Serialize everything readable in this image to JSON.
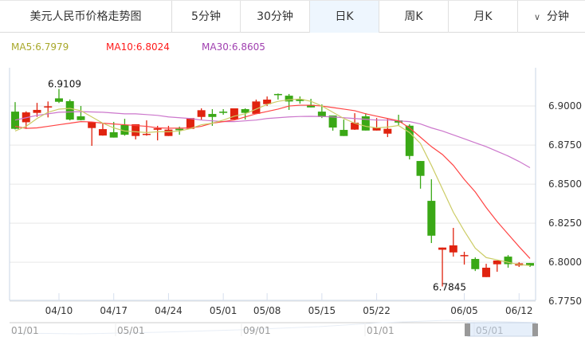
{
  "header": {
    "title": "美元人民币价格走势图",
    "tabs": [
      {
        "label": "5分钟"
      },
      {
        "label": "30分钟"
      },
      {
        "label": "日K",
        "active": true
      },
      {
        "label": "周K"
      },
      {
        "label": "月K"
      },
      {
        "label": "分钟",
        "icon": "chevron-down-icon"
      }
    ]
  },
  "ma_legend": [
    {
      "label": "MA5:6.7979",
      "color": "#a8a82a"
    },
    {
      "label": "MA10:6.8024",
      "color": "#ff1a1a"
    },
    {
      "label": "MA30:6.8605",
      "color": "#a040b0"
    }
  ],
  "colors": {
    "up": "#e0230f",
    "down": "#3aa816",
    "ma5": "#cccc66",
    "ma10": "#ff4444",
    "ma30": "#cc77cc",
    "grid": "#e6e6e6"
  },
  "chart_data": {
    "type": "candlestick",
    "ylim": [
      6.7756,
      6.9245
    ],
    "yticks": [
      "6.9000",
      "6.8750",
      "6.8500",
      "6.8250",
      "6.8000",
      "6.7750"
    ],
    "xtick_labels": [
      {
        "index": 4,
        "label": "04/10"
      },
      {
        "index": 9,
        "label": "04/17"
      },
      {
        "index": 14,
        "label": "04/24"
      },
      {
        "index": 19,
        "label": "05/01"
      },
      {
        "index": 23,
        "label": "05/08"
      },
      {
        "index": 28,
        "label": "05/15"
      },
      {
        "index": 33,
        "label": "05/22"
      },
      {
        "index": 41,
        "label": "06/05"
      },
      {
        "index": 46,
        "label": "06/12"
      }
    ],
    "annotations": [
      {
        "index": 4,
        "label": "6.9109",
        "type": "high"
      },
      {
        "index": 39,
        "label": "6.7845",
        "type": "low"
      }
    ],
    "ohlc": [
      [
        6.8964,
        6.9025,
        6.885,
        6.8854
      ],
      [
        6.8896,
        6.8966,
        6.8854,
        6.8959
      ],
      [
        6.8956,
        6.902,
        6.893,
        6.8975
      ],
      [
        6.8993,
        6.9029,
        6.8927,
        6.8998
      ],
      [
        6.9049,
        6.9109,
        6.9019,
        6.9027
      ],
      [
        6.9031,
        6.9042,
        6.8908,
        6.8913
      ],
      [
        6.8934,
        6.9,
        6.8908,
        6.891
      ],
      [
        6.8859,
        6.8898,
        6.8745,
        6.8896
      ],
      [
        6.8811,
        6.8888,
        6.881,
        6.8852
      ],
      [
        6.8832,
        6.8898,
        6.8798,
        6.8798
      ],
      [
        6.8878,
        6.8918,
        6.881,
        6.8816
      ],
      [
        6.8808,
        6.8883,
        6.8786,
        6.8883
      ],
      [
        6.8815,
        6.8908,
        6.881,
        6.8822
      ],
      [
        6.8848,
        6.8873,
        6.878,
        6.8857
      ],
      [
        6.8808,
        6.8873,
        6.8808,
        6.8849
      ],
      [
        6.8854,
        6.8868,
        6.8816,
        6.8845
      ],
      [
        6.8854,
        6.8923,
        6.8852,
        6.8923
      ],
      [
        6.893,
        6.8985,
        6.8913,
        6.8973
      ],
      [
        6.8949,
        6.898,
        6.8873,
        6.893
      ],
      [
        6.8964,
        6.898,
        6.8944,
        6.8956
      ],
      [
        6.8913,
        6.8985,
        6.8913,
        6.8985
      ],
      [
        6.898,
        6.8985,
        6.8913,
        6.8956
      ],
      [
        6.895,
        6.9041,
        6.895,
        6.9029
      ],
      [
        6.9012,
        6.9061,
        6.9,
        6.9041
      ],
      [
        6.9077,
        6.908,
        6.9041,
        6.907
      ],
      [
        6.9066,
        6.9077,
        6.8975,
        6.9029
      ],
      [
        6.9044,
        6.9061,
        6.9015,
        6.9032
      ],
      [
        6.9007,
        6.9046,
        6.8991,
        6.8991
      ],
      [
        6.8964,
        6.901,
        6.8923,
        6.893
      ],
      [
        6.8939,
        6.8939,
        6.8842,
        6.8862
      ],
      [
        6.8847,
        6.8913,
        6.8808,
        6.8808
      ],
      [
        6.8849,
        6.8954,
        6.8847,
        6.8893
      ],
      [
        6.8934,
        6.8954,
        6.8843,
        6.8843
      ],
      [
        6.8843,
        6.8923,
        6.8843,
        6.8862
      ],
      [
        6.8823,
        6.8918,
        6.8801,
        6.8854
      ],
      [
        6.8908,
        6.8944,
        6.8878,
        6.8894
      ],
      [
        6.8874,
        6.8883,
        6.8658,
        6.868
      ],
      [
        6.8648,
        6.8648,
        6.8471,
        6.8553
      ],
      [
        6.8393,
        6.8531,
        6.8123,
        6.817
      ],
      [
        6.808,
        6.8094,
        6.7845,
        6.8094
      ],
      [
        6.8063,
        6.822,
        6.8036,
        6.8108
      ],
      [
        6.8039,
        6.8067,
        6.7985,
        6.8046
      ],
      [
        6.8021,
        6.8031,
        6.7944,
        6.7956
      ],
      [
        6.7905,
        6.799,
        6.7905,
        6.7965
      ],
      [
        6.7987,
        6.8011,
        6.7939,
        6.8011
      ],
      [
        6.8036,
        6.8046,
        6.7965,
        6.7988
      ],
      [
        6.7979,
        6.8,
        6.797,
        6.7993
      ],
      [
        6.7995,
        6.7995,
        6.797,
        6.7978
      ]
    ],
    "ma5": [
      6.884,
      6.887,
      6.892,
      6.896,
      6.898,
      6.8985,
      6.897,
      6.893,
      6.889,
      6.886,
      6.884,
      6.8835,
      6.883,
      6.8835,
      6.8835,
      6.884,
      6.8855,
      6.888,
      6.889,
      6.891,
      6.8935,
      6.895,
      6.898,
      6.901,
      6.903,
      6.904,
      6.9045,
      6.903,
      6.9,
      6.896,
      6.892,
      6.889,
      6.887,
      6.886,
      6.8865,
      6.8875,
      6.883,
      6.876,
      6.862,
      6.847,
      6.832,
      6.82,
      6.809,
      6.803,
      6.8015,
      6.8,
      6.7985,
      6.7979
    ],
    "ma10": [
      6.887,
      6.8857,
      6.886,
      6.887,
      6.888,
      6.889,
      6.89,
      6.8898,
      6.889,
      6.8885,
      6.888,
      6.8875,
      6.887,
      6.886,
      6.8858,
      6.8858,
      6.886,
      6.887,
      6.889,
      6.89,
      6.891,
      6.893,
      6.895,
      6.8965,
      6.898,
      6.9,
      6.9005,
      6.9005,
      6.9,
      6.899,
      6.898,
      6.897,
      6.895,
      6.8935,
      6.892,
      6.8905,
      6.886,
      6.88,
      6.874,
      6.869,
      6.862,
      6.853,
      6.845,
      6.835,
      6.826,
      6.818,
      6.81,
      6.8024
    ],
    "ma30": [
      6.891,
      6.8925,
      6.894,
      6.895,
      6.896,
      6.8962,
      6.8964,
      6.8962,
      6.896,
      6.8955,
      6.895,
      6.895,
      6.8945,
      6.894,
      6.893,
      6.8925,
      6.892,
      6.891,
      6.8905,
      6.89,
      6.89,
      6.8905,
      6.891,
      6.892,
      6.8925,
      6.893,
      6.8933,
      6.8934,
      6.8933,
      6.893,
      6.8925,
      6.892,
      6.8915,
      6.891,
      6.891,
      6.8905,
      6.89,
      6.8885,
      6.886,
      6.884,
      6.8815,
      6.879,
      6.8765,
      6.874,
      6.871,
      6.868,
      6.8645,
      6.8605
    ],
    "navigator": {
      "labels": [
        "01/01",
        "05/01",
        "09/01",
        "01/01",
        "05/01"
      ]
    }
  }
}
